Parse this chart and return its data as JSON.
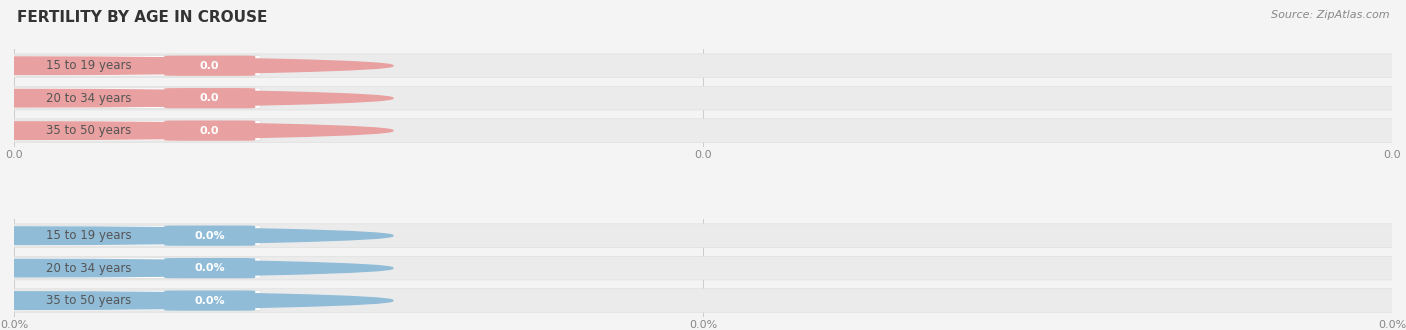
{
  "title": "FERTILITY BY AGE IN CROUSE",
  "source_text": "Source: ZipAtlas.com",
  "sections": [
    {
      "categories": [
        "15 to 19 years",
        "20 to 34 years",
        "35 to 50 years"
      ],
      "values": [
        0.0,
        0.0,
        0.0
      ],
      "value_labels": [
        "0.0",
        "0.0",
        "0.0"
      ],
      "x_tick_label": "0.0",
      "bar_color": "#e8a0a0",
      "circle_color": "#e8a0a0"
    },
    {
      "categories": [
        "15 to 19 years",
        "20 to 34 years",
        "35 to 50 years"
      ],
      "values": [
        0.0,
        0.0,
        0.0
      ],
      "value_labels": [
        "0.0%",
        "0.0%",
        "0.0%"
      ],
      "x_tick_label": "0.0%",
      "bar_color": "#90bcd8",
      "circle_color": "#90bcd8"
    }
  ],
  "bg_color": "#f4f4f4",
  "row_bg_color": "#ebebeb",
  "row_border_color": "#dddddd",
  "label_pill_bg": "#ffffff",
  "label_pill_border": "#e0e0e0",
  "grid_line_color": "#cccccc",
  "title_color": "#333333",
  "source_color": "#888888",
  "label_text_color": "#555555",
  "tick_color": "#888888",
  "title_fontsize": 11,
  "label_fontsize": 8.5,
  "value_fontsize": 8,
  "tick_fontsize": 8,
  "source_fontsize": 8
}
